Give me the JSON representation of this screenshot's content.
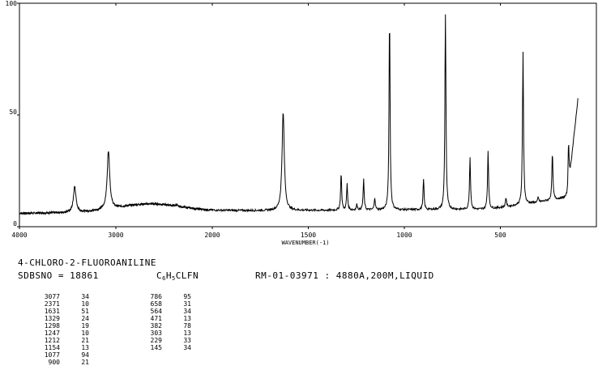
{
  "chart_data": {
    "type": "line",
    "xlabel": "WAVENUMBER(-1)",
    "ylabel": "",
    "xlim": [
      4000,
      0
    ],
    "ylim": [
      0,
      100
    ],
    "x_ticks": [
      "4000",
      "3000",
      "2000",
      "1500",
      "1000",
      "500"
    ],
    "y_ticks": [
      "100",
      "50",
      "0"
    ],
    "grid": false,
    "series": [
      {
        "peaks": [
          {
            "x": 3427,
            "y": 18
          },
          {
            "x": 3077,
            "y": 34
          },
          {
            "x": 2371,
            "y": 10
          },
          {
            "x": 1631,
            "y": 51
          },
          {
            "x": 1329,
            "y": 24
          },
          {
            "x": 1298,
            "y": 19
          },
          {
            "x": 1247,
            "y": 10
          },
          {
            "x": 1212,
            "y": 21
          },
          {
            "x": 1154,
            "y": 13
          },
          {
            "x": 1077,
            "y": 94
          },
          {
            "x": 900,
            "y": 21
          },
          {
            "x": 786,
            "y": 95
          },
          {
            "x": 658,
            "y": 31
          },
          {
            "x": 564,
            "y": 34
          },
          {
            "x": 471,
            "y": 13
          },
          {
            "x": 382,
            "y": 78
          },
          {
            "x": 303,
            "y": 13
          },
          {
            "x": 229,
            "y": 33
          },
          {
            "x": 145,
            "y": 34
          }
        ]
      }
    ]
  },
  "info": {
    "compound": "4-CHLORO-2-FLUOROANILINE",
    "sdbs_label": "SDBSNO = 18861",
    "formula": {
      "c": "C",
      "c_n": "6",
      "h": "H",
      "h_n": "5",
      "rest": "CLFN"
    },
    "measurement": "RM-01-03971 : 4880A,200M,LIQUID"
  },
  "peak_table": {
    "col1": [
      [
        "3077",
        "34"
      ],
      [
        "2371",
        "10"
      ],
      [
        "1631",
        "51"
      ],
      [
        "1329",
        "24"
      ],
      [
        "1298",
        "19"
      ],
      [
        "1247",
        "10"
      ],
      [
        "1212",
        "21"
      ],
      [
        "1154",
        "13"
      ],
      [
        "1077",
        "94"
      ],
      [
        "900",
        "21"
      ]
    ],
    "col2": [
      [
        "786",
        "95"
      ],
      [
        "658",
        "31"
      ],
      [
        "564",
        "34"
      ],
      [
        "471",
        "13"
      ],
      [
        "382",
        "78"
      ],
      [
        "303",
        "13"
      ],
      [
        "229",
        "33"
      ],
      [
        "145",
        "34"
      ]
    ]
  }
}
